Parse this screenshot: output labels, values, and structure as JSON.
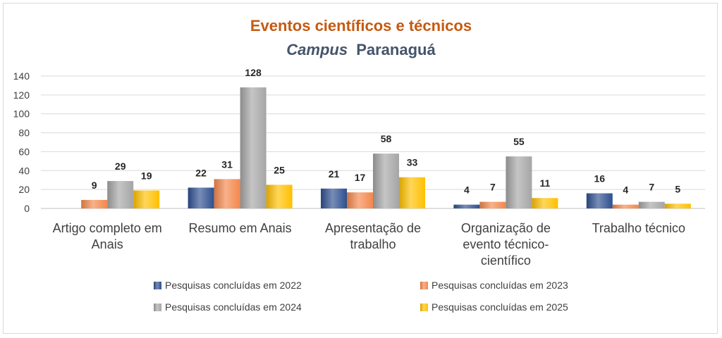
{
  "chart_data": {
    "type": "bar",
    "title": "Eventos científicos e técnicos",
    "subtitle_italic": "Campus",
    "subtitle_rest": "Paranaguá",
    "categories": [
      "Artigo completo em|Anais",
      "Resumo em Anais",
      "Apresentação de|trabalho",
      "Organização de|evento técnico-|científico",
      "Trabalho técnico"
    ],
    "series": [
      {
        "name": "Pesquisas concluídas em 2022",
        "values": [
          null,
          22,
          21,
          4,
          16
        ],
        "color": "#2e4f8f"
      },
      {
        "name": "Pesquisas concluídas em 2023",
        "values": [
          9,
          31,
          17,
          7,
          4
        ],
        "color": "#f4874b"
      },
      {
        "name": "Pesquisas concluídas em 2024",
        "values": [
          29,
          128,
          58,
          55,
          7
        ],
        "color": "#a5a5a5"
      },
      {
        "name": "Pesquisas concluídas em 2025",
        "values": [
          19,
          25,
          33,
          11,
          5
        ],
        "color": "#ffc000"
      }
    ],
    "ylim": [
      0,
      140
    ],
    "yticks": [
      "0",
      "20",
      "40",
      "60",
      "80",
      "100",
      "120",
      "140"
    ],
    "grid": true,
    "legend_position": "bottom",
    "title_color": "#c55a11",
    "subtitle_color": "#44546a"
  }
}
